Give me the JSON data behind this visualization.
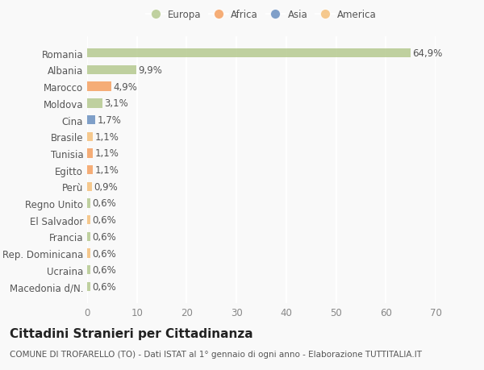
{
  "categories": [
    "Macedonia d/N.",
    "Ucraina",
    "Rep. Dominicana",
    "Francia",
    "El Salvador",
    "Regno Unito",
    "Perù",
    "Egitto",
    "Tunisia",
    "Brasile",
    "Cina",
    "Moldova",
    "Marocco",
    "Albania",
    "Romania"
  ],
  "values": [
    0.6,
    0.6,
    0.6,
    0.6,
    0.6,
    0.6,
    0.9,
    1.1,
    1.1,
    1.1,
    1.7,
    3.1,
    4.9,
    9.9,
    64.9
  ],
  "colors": [
    "#b5c990",
    "#b5c990",
    "#f5c07a",
    "#b5c990",
    "#f5c07a",
    "#b5c990",
    "#f5c07a",
    "#f5a060",
    "#f5a060",
    "#f5c07a",
    "#6a8fc0",
    "#b5c990",
    "#f5a060",
    "#b5c990",
    "#b5c990"
  ],
  "legend_labels": [
    "Europa",
    "Africa",
    "Asia",
    "America"
  ],
  "legend_colors": [
    "#b5c990",
    "#f5a060",
    "#6a8fc0",
    "#f5c07a"
  ],
  "title": "Cittadini Stranieri per Cittadinanza",
  "subtitle": "COMUNE DI TROFARELLO (TO) - Dati ISTAT al 1° gennaio di ogni anno - Elaborazione TUTTITALIA.IT",
  "xlim": [
    0,
    70
  ],
  "xticks": [
    0,
    10,
    20,
    30,
    40,
    50,
    60,
    70
  ],
  "bg_color": "#f9f9f9",
  "grid_color": "#e8e8e8",
  "bar_height": 0.55,
  "title_fontsize": 11,
  "subtitle_fontsize": 7.5,
  "label_fontsize": 8.5,
  "tick_fontsize": 8.5
}
